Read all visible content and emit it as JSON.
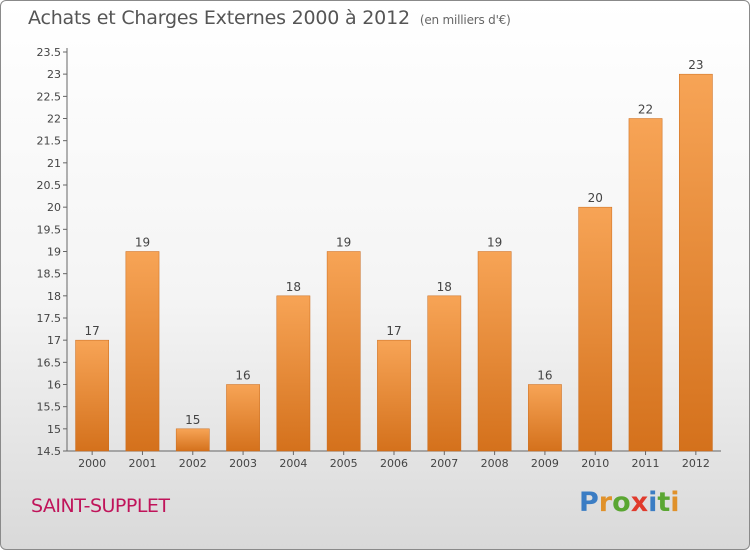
{
  "chart_data": {
    "type": "bar",
    "title": "Achats et Charges Externes 2000 à 2012",
    "subtitle": "(en milliers d'€)",
    "categories": [
      "2000",
      "2001",
      "2002",
      "2003",
      "2004",
      "2005",
      "2006",
      "2007",
      "2008",
      "2009",
      "2010",
      "2011",
      "2012"
    ],
    "values": [
      17,
      19,
      15,
      16,
      18,
      19,
      17,
      18,
      19,
      16,
      20,
      22,
      23
    ],
    "ylim": [
      14.5,
      23.5
    ],
    "yticks": [
      "14.5",
      "15",
      "15.5",
      "16",
      "16.5",
      "17",
      "17.5",
      "18",
      "18.5",
      "19",
      "19.5",
      "20",
      "20.5",
      "21",
      "21.5",
      "22",
      "22.5",
      "23",
      "23.5"
    ],
    "xlabel": "",
    "ylabel": "",
    "grid": false,
    "bar_color_top": "#f7a456",
    "bar_color_bottom": "#d4711c"
  },
  "footer": {
    "place": "SAINT-SUPPLET",
    "logo_letters": [
      {
        "ch": "P",
        "color": "#3b7dc4"
      },
      {
        "ch": "r",
        "color": "#e0912a"
      },
      {
        "ch": "o",
        "color": "#5aa632"
      },
      {
        "ch": "x",
        "color": "#e03a2c"
      },
      {
        "ch": "i",
        "color": "#3b7dc4"
      },
      {
        "ch": "t",
        "color": "#5aa632"
      },
      {
        "ch": "i",
        "color": "#e0912a"
      }
    ]
  }
}
